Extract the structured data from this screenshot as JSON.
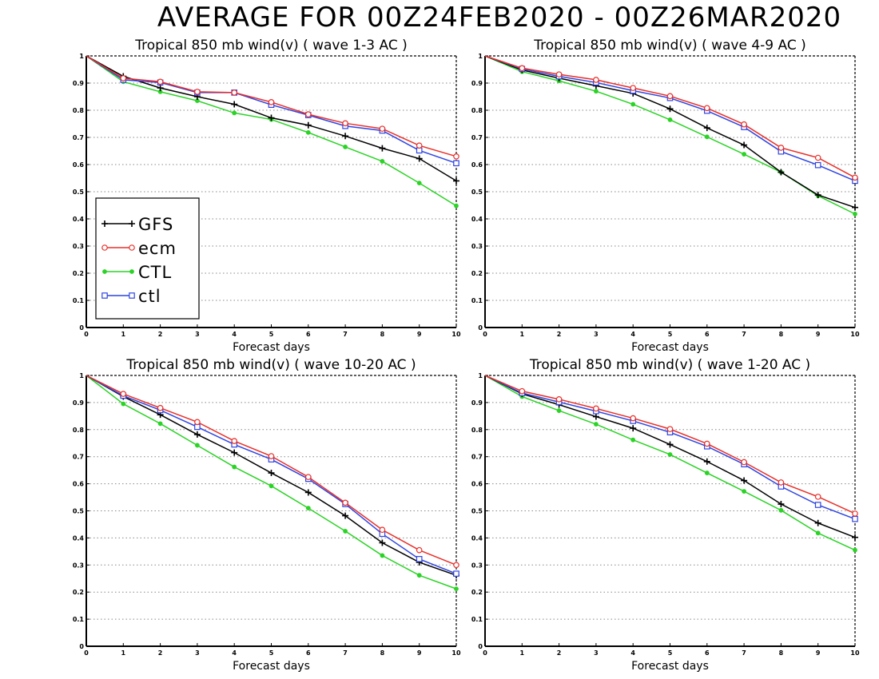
{
  "main_title": "AVERAGE FOR 00Z24FEB2020 - 00Z26MAR2020",
  "colors": {
    "GFS": "#000000",
    "ecm": "#e8302a",
    "CTL": "#2bd326",
    "ctl": "#2f45e0"
  },
  "chart_data": [
    {
      "type": "line",
      "title": "Tropical 850 mb wind(v) ( wave 1-3 AC )",
      "xlabel": "Forecast days",
      "ylabel": "",
      "x": [
        0,
        1,
        2,
        3,
        4,
        5,
        6,
        7,
        8,
        9,
        10
      ],
      "xlim": [
        0,
        10
      ],
      "ylim": [
        0,
        1
      ],
      "x_ticks": [
        "0",
        "1",
        "2",
        "3",
        "4",
        "5",
        "6",
        "7",
        "8",
        "9",
        "10"
      ],
      "y_ticks": [
        "0",
        "0.1",
        "0.2",
        "0.3",
        "0.4",
        "0.5",
        "0.6",
        "0.7",
        "0.8",
        "0.9",
        "1"
      ],
      "grid": true,
      "legend": {
        "position": "middle-left",
        "entries": [
          "GFS",
          "ecm",
          "CTL",
          "ctl"
        ]
      },
      "series": [
        {
          "name": "GFS",
          "marker": "plus",
          "values": [
            1.0,
            0.925,
            0.882,
            0.85,
            0.822,
            0.772,
            0.745,
            0.705,
            0.66,
            0.622,
            0.54
          ]
        },
        {
          "name": "ecm",
          "marker": "circle",
          "values": [
            1.0,
            0.918,
            0.905,
            0.868,
            0.865,
            0.83,
            0.785,
            0.752,
            0.732,
            0.67,
            0.63
          ]
        },
        {
          "name": "CTL",
          "marker": "dot",
          "values": [
            1.0,
            0.905,
            0.868,
            0.835,
            0.79,
            0.766,
            0.718,
            0.665,
            0.612,
            0.532,
            0.448
          ]
        },
        {
          "name": "ctl",
          "marker": "square",
          "values": [
            1.0,
            0.912,
            0.902,
            0.865,
            0.865,
            0.82,
            0.782,
            0.742,
            0.725,
            0.652,
            0.605
          ]
        }
      ]
    },
    {
      "type": "line",
      "title": "Tropical 850 mb wind(v) ( wave 4-9 AC )",
      "xlabel": "Forecast days",
      "ylabel": "",
      "x": [
        0,
        1,
        2,
        3,
        4,
        5,
        6,
        7,
        8,
        9,
        10
      ],
      "xlim": [
        0,
        10
      ],
      "ylim": [
        0,
        1
      ],
      "x_ticks": [
        "0",
        "1",
        "2",
        "3",
        "4",
        "5",
        "6",
        "7",
        "8",
        "9",
        "10"
      ],
      "y_ticks": [
        "0",
        "0.1",
        "0.2",
        "0.3",
        "0.4",
        "0.5",
        "0.6",
        "0.7",
        "0.8",
        "0.9",
        "1"
      ],
      "grid": true,
      "series": [
        {
          "name": "GFS",
          "marker": "plus",
          "values": [
            1.0,
            0.948,
            0.918,
            0.89,
            0.862,
            0.805,
            0.735,
            0.672,
            0.572,
            0.488,
            0.442
          ]
        },
        {
          "name": "ecm",
          "marker": "circle",
          "values": [
            1.0,
            0.955,
            0.932,
            0.912,
            0.882,
            0.852,
            0.808,
            0.748,
            0.662,
            0.625,
            0.552
          ]
        },
        {
          "name": "CTL",
          "marker": "dot",
          "values": [
            1.0,
            0.942,
            0.908,
            0.87,
            0.822,
            0.765,
            0.702,
            0.638,
            0.572,
            0.485,
            0.418
          ]
        },
        {
          "name": "ctl",
          "marker": "square",
          "values": [
            1.0,
            0.952,
            0.925,
            0.902,
            0.872,
            0.845,
            0.798,
            0.738,
            0.648,
            0.598,
            0.54
          ]
        }
      ]
    },
    {
      "type": "line",
      "title": "Tropical 850 mb wind(v) ( wave 10-20 AC )",
      "xlabel": "Forecast days",
      "ylabel": "",
      "x": [
        0,
        1,
        2,
        3,
        4,
        5,
        6,
        7,
        8,
        9,
        10
      ],
      "xlim": [
        0,
        10
      ],
      "ylim": [
        0,
        1
      ],
      "x_ticks": [
        "0",
        "1",
        "2",
        "3",
        "4",
        "5",
        "6",
        "7",
        "8",
        "9",
        "10"
      ],
      "y_ticks": [
        "0",
        "0.1",
        "0.2",
        "0.3",
        "0.4",
        "0.5",
        "0.6",
        "0.7",
        "0.8",
        "0.9",
        "1"
      ],
      "grid": true,
      "series": [
        {
          "name": "GFS",
          "marker": "plus",
          "values": [
            1.0,
            0.922,
            0.855,
            0.782,
            0.715,
            0.64,
            0.568,
            0.482,
            0.382,
            0.31,
            0.262
          ]
        },
        {
          "name": "ecm",
          "marker": "circle",
          "values": [
            1.0,
            0.932,
            0.88,
            0.828,
            0.758,
            0.702,
            0.625,
            0.53,
            0.43,
            0.355,
            0.3
          ]
        },
        {
          "name": "CTL",
          "marker": "dot",
          "values": [
            1.0,
            0.895,
            0.822,
            0.742,
            0.662,
            0.592,
            0.51,
            0.425,
            0.335,
            0.262,
            0.212
          ]
        },
        {
          "name": "ctl",
          "marker": "square",
          "values": [
            1.0,
            0.925,
            0.872,
            0.81,
            0.745,
            0.69,
            0.618,
            0.525,
            0.415,
            0.322,
            0.268
          ]
        }
      ]
    },
    {
      "type": "line",
      "title": "Tropical 850 mb wind(v) ( wave 1-20 AC )",
      "xlabel": "Forecast days",
      "ylabel": "",
      "x": [
        0,
        1,
        2,
        3,
        4,
        5,
        6,
        7,
        8,
        9,
        10
      ],
      "xlim": [
        0,
        10
      ],
      "ylim": [
        0,
        1
      ],
      "x_ticks": [
        "0",
        "1",
        "2",
        "3",
        "4",
        "5",
        "6",
        "7",
        "8",
        "9",
        "10"
      ],
      "y_ticks": [
        "0",
        "0.1",
        "0.2",
        "0.3",
        "0.4",
        "0.5",
        "0.6",
        "0.7",
        "0.8",
        "0.9",
        "1"
      ],
      "grid": true,
      "series": [
        {
          "name": "GFS",
          "marker": "plus",
          "values": [
            1.0,
            0.932,
            0.892,
            0.848,
            0.805,
            0.745,
            0.682,
            0.612,
            0.525,
            0.455,
            0.402
          ]
        },
        {
          "name": "ecm",
          "marker": "circle",
          "values": [
            1.0,
            0.942,
            0.912,
            0.878,
            0.842,
            0.802,
            0.748,
            0.68,
            0.605,
            0.552,
            0.49
          ]
        },
        {
          "name": "CTL",
          "marker": "dot",
          "values": [
            1.0,
            0.922,
            0.87,
            0.82,
            0.762,
            0.708,
            0.64,
            0.572,
            0.502,
            0.418,
            0.355
          ]
        },
        {
          "name": "ctl",
          "marker": "square",
          "values": [
            1.0,
            0.935,
            0.902,
            0.868,
            0.832,
            0.79,
            0.738,
            0.672,
            0.59,
            0.522,
            0.47
          ]
        }
      ]
    }
  ]
}
